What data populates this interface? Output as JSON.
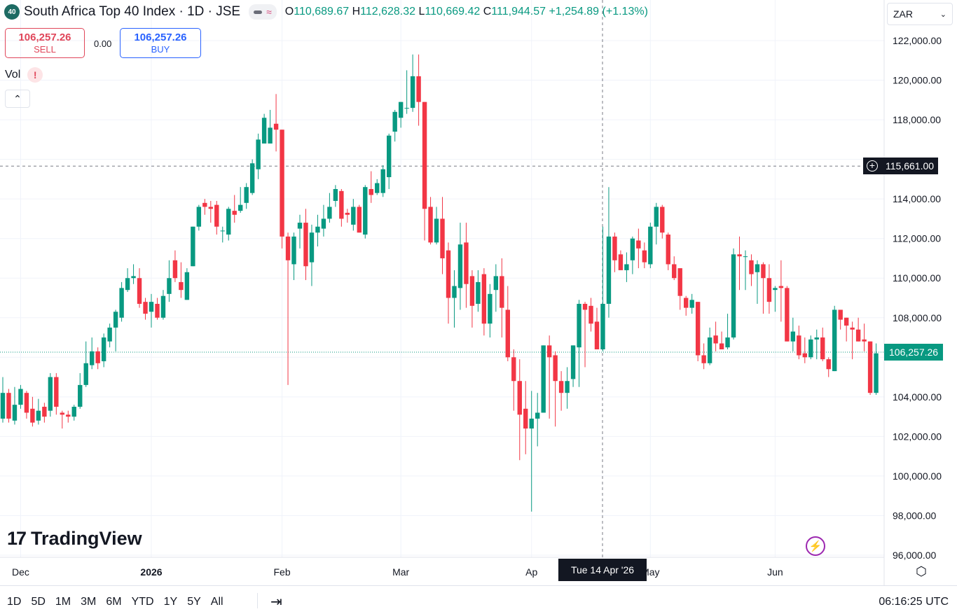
{
  "header": {
    "symbol_badge": "40",
    "title": "South Africa Top 40 Index · 1D · JSE",
    "ohlc": {
      "o_label": "O",
      "o": "110,689.67",
      "h_label": "H",
      "h": "112,628.32",
      "l_label": "L",
      "l": "110,669.42",
      "c_label": "C",
      "c": "111,944.57",
      "change": "+1,254.89 (+1.13%)"
    }
  },
  "trade": {
    "sell_price": "106,257.26",
    "sell_label": "SELL",
    "spread": "0.00",
    "buy_price": "106,257.26",
    "buy_label": "BUY"
  },
  "vol_label": "Vol",
  "vol_warning": "!",
  "currency": "ZAR",
  "crosshair": {
    "price_label": "115,661.00",
    "date_label": "Tue 14 Apr '26",
    "price": 115661
  },
  "last_price_label": "106,257.26",
  "logo_text": "TradingView",
  "bottom": {
    "ranges": [
      "1D",
      "5D",
      "1M",
      "3M",
      "6M",
      "YTD",
      "1Y",
      "5Y",
      "All"
    ],
    "clock": "06:16:25 UTC"
  },
  "colors": {
    "up": "#089981",
    "down": "#f23645",
    "grid": "#f0f3fa"
  },
  "icons": [
    "collapse-chevron-icon",
    "currency-chevron-icon",
    "crosshair-plus-icon",
    "lightning-icon",
    "settings-icon",
    "goto-date-icon"
  ],
  "chart_data": {
    "type": "candlestick",
    "ylim": [
      96000,
      122500
    ],
    "y_ticks": [
      96000,
      98000,
      100000,
      102000,
      104000,
      106000,
      108000,
      110000,
      112000,
      114000,
      116000,
      118000,
      120000,
      122000
    ],
    "y_tick_labels": [
      "96,000.00",
      "98,000.00",
      "100,000.00",
      "102,000.00",
      "104,000.00",
      "",
      "108,000.00",
      "110,000.00",
      "112,000.00",
      "114,000.00",
      "",
      "118,000.00",
      "120,000.00",
      "122,000.00"
    ],
    "x_labels": [
      {
        "label": "Dec",
        "index": 3
      },
      {
        "label": "2026",
        "index": 25
      },
      {
        "label": "Feb",
        "index": 47
      },
      {
        "label": "Mar",
        "index": 67
      },
      {
        "label": "Ap",
        "index": 89
      },
      {
        "label": "May",
        "index": 109
      },
      {
        "label": "Jun",
        "index": 130
      }
    ],
    "last_price": 106257.26,
    "candles": [
      [
        102900,
        104200,
        105000,
        102700
      ],
      [
        104200,
        102900,
        104400,
        102700
      ],
      [
        102800,
        103600,
        104500,
        102600
      ],
      [
        103600,
        104400,
        104600,
        103400
      ],
      [
        104200,
        103200,
        104300,
        102900
      ],
      [
        103400,
        102700,
        104000,
        102500
      ],
      [
        102800,
        103300,
        103900,
        102600
      ],
      [
        103500,
        103000,
        103700,
        102700
      ],
      [
        103300,
        105000,
        105200,
        103000
      ],
      [
        105000,
        103500,
        105200,
        103100
      ],
      [
        103200,
        103100,
        103300,
        102400
      ],
      [
        103100,
        103000,
        103300,
        102700
      ],
      [
        103000,
        103500,
        103600,
        102800
      ],
      [
        103500,
        104600,
        105200,
        103400
      ],
      [
        104600,
        105700,
        106800,
        104500
      ],
      [
        105600,
        106300,
        107000,
        105400
      ],
      [
        106300,
        105700,
        106500,
        105400
      ],
      [
        105800,
        107000,
        107200,
        105500
      ],
      [
        106800,
        107500,
        107700,
        106500
      ],
      [
        107500,
        108300,
        108400,
        106300
      ],
      [
        108000,
        109500,
        109800,
        107800
      ],
      [
        109400,
        110000,
        110500,
        109300
      ],
      [
        110000,
        110100,
        110700,
        109700
      ],
      [
        110000,
        108700,
        110500,
        108500
      ],
      [
        108800,
        108200,
        109000,
        107900
      ],
      [
        108300,
        108800,
        109200,
        107500
      ],
      [
        108700,
        108000,
        109000,
        107900
      ],
      [
        108000,
        109100,
        109400,
        107900
      ],
      [
        109200,
        110000,
        110900,
        108800
      ],
      [
        110900,
        110000,
        111400,
        109800
      ],
      [
        109800,
        109400,
        110800,
        109000
      ],
      [
        108900,
        110300,
        110500,
        108900
      ],
      [
        110600,
        112600,
        112600,
        110600
      ],
      [
        112600,
        113600,
        113700,
        112400
      ],
      [
        113800,
        113600,
        114000,
        113200
      ],
      [
        113600,
        113500,
        113900,
        112800
      ],
      [
        113700,
        112600,
        113900,
        112200
      ],
      [
        112400,
        112400,
        112600,
        111800
      ],
      [
        112200,
        113500,
        113600,
        111900
      ],
      [
        113400,
        113200,
        114200,
        112800
      ],
      [
        113400,
        113700,
        114600,
        113300
      ],
      [
        113800,
        114600,
        114800,
        113500
      ],
      [
        114300,
        115800,
        116000,
        114200
      ],
      [
        115500,
        117000,
        117300,
        115000
      ],
      [
        116800,
        118100,
        118300,
        116800
      ],
      [
        116800,
        117600,
        118500,
        117400
      ],
      [
        117800,
        117500,
        119300,
        116400
      ],
      [
        117500,
        112100,
        117500,
        111500
      ],
      [
        112100,
        110900,
        112300,
        104600
      ],
      [
        110700,
        112100,
        112300,
        109900
      ],
      [
        112500,
        112800,
        113200,
        111500
      ],
      [
        112800,
        110600,
        113500,
        109900
      ],
      [
        110800,
        112300,
        112700,
        109600
      ],
      [
        112300,
        112600,
        113200,
        111600
      ],
      [
        112500,
        113000,
        113700,
        112100
      ],
      [
        113000,
        113600,
        114300,
        112800
      ],
      [
        113900,
        114500,
        114700,
        113600
      ],
      [
        114400,
        113000,
        114500,
        112600
      ],
      [
        113300,
        113200,
        113500,
        112800
      ],
      [
        112700,
        113600,
        114000,
        112400
      ],
      [
        113600,
        112300,
        113700,
        112300
      ],
      [
        112200,
        114600,
        114700,
        112000
      ],
      [
        114500,
        114200,
        115400,
        113800
      ],
      [
        114300,
        114800,
        115000,
        114200
      ],
      [
        114300,
        115500,
        115700,
        114100
      ],
      [
        115100,
        117200,
        117300,
        114500
      ],
      [
        117400,
        118400,
        118500,
        116900
      ],
      [
        118100,
        118900,
        118900,
        117600
      ],
      [
        118600,
        118600,
        120500,
        118300
      ],
      [
        118600,
        120200,
        121300,
        118400
      ],
      [
        120200,
        118900,
        121300,
        117700
      ],
      [
        118900,
        113500,
        118900,
        111900
      ],
      [
        113600,
        111800,
        114100,
        111700
      ],
      [
        111800,
        113000,
        113600,
        111700
      ],
      [
        113000,
        111000,
        114100,
        110200
      ],
      [
        111400,
        109000,
        111800,
        107700
      ],
      [
        109000,
        109600,
        110400,
        107500
      ],
      [
        109500,
        111700,
        112800,
        108400
      ],
      [
        111800,
        109700,
        112800,
        108500
      ],
      [
        110100,
        108600,
        110400,
        107500
      ],
      [
        108700,
        109800,
        110400,
        108300
      ],
      [
        110200,
        107700,
        110500,
        107100
      ],
      [
        107700,
        109200,
        109700,
        107000
      ],
      [
        109400,
        110100,
        110700,
        108300
      ],
      [
        110100,
        108500,
        111000,
        107000
      ],
      [
        108400,
        106000,
        109600,
        105800
      ],
      [
        106000,
        104800,
        106400,
        103300
      ],
      [
        104800,
        103100,
        105900,
        100800
      ],
      [
        103400,
        102400,
        104800,
        101100
      ],
      [
        102400,
        102900,
        104300,
        98200
      ],
      [
        102900,
        103200,
        104200,
        101500
      ],
      [
        103200,
        106600,
        106600,
        103200
      ],
      [
        106600,
        106000,
        107100,
        102900
      ],
      [
        106100,
        104800,
        106300,
        102500
      ],
      [
        104800,
        104200,
        105300,
        103300
      ],
      [
        104200,
        104800,
        105500,
        103400
      ],
      [
        104900,
        106600,
        106600,
        104500
      ],
      [
        106500,
        108700,
        108900,
        104500
      ],
      [
        108700,
        108400,
        108800,
        105500
      ],
      [
        108600,
        107700,
        109000,
        107300
      ],
      [
        107800,
        106400,
        108500,
        106400
      ],
      [
        106400,
        108700,
        112600,
        106300
      ],
      [
        108700,
        112100,
        114600,
        108000
      ],
      [
        112100,
        110900,
        112300,
        110300
      ],
      [
        111200,
        110400,
        111400,
        110500
      ],
      [
        110400,
        110700,
        111300,
        109800
      ],
      [
        110900,
        112000,
        112100,
        110200
      ],
      [
        111900,
        111500,
        112500,
        110500
      ],
      [
        111400,
        110800,
        111800,
        110500
      ],
      [
        110700,
        112600,
        112800,
        110500
      ],
      [
        112600,
        113600,
        113800,
        111700
      ],
      [
        113600,
        112300,
        113700,
        112000
      ],
      [
        112200,
        110700,
        112300,
        110400
      ],
      [
        110700,
        110000,
        111100,
        109900
      ],
      [
        110500,
        109100,
        110500,
        108400
      ],
      [
        109000,
        108500,
        109100,
        108100
      ],
      [
        108500,
        108900,
        109200,
        108200
      ],
      [
        108800,
        106100,
        108800,
        105800
      ],
      [
        106100,
        105700,
        106700,
        105400
      ],
      [
        105700,
        107000,
        107500,
        105600
      ],
      [
        107100,
        106700,
        107800,
        106300
      ],
      [
        106700,
        106400,
        107300,
        106500
      ],
      [
        106500,
        107000,
        108200,
        106400
      ],
      [
        107000,
        111200,
        111500,
        106900
      ],
      [
        111200,
        111100,
        112100,
        109400
      ],
      [
        111100,
        111100,
        111400,
        109400
      ],
      [
        110900,
        110200,
        111200,
        109600
      ],
      [
        110300,
        110700,
        110900,
        108700
      ],
      [
        110700,
        110000,
        110800,
        108200
      ],
      [
        110000,
        108800,
        110700,
        108200
      ],
      [
        109400,
        109500,
        109600,
        108300
      ],
      [
        109600,
        109500,
        110900,
        107800
      ],
      [
        109500,
        106800,
        109600,
        106800
      ],
      [
        106800,
        107300,
        108000,
        106300
      ],
      [
        107100,
        106100,
        107600,
        105900
      ],
      [
        106200,
        106000,
        107000,
        105700
      ],
      [
        106000,
        106900,
        107100,
        105900
      ],
      [
        106900,
        107000,
        107400,
        105900
      ],
      [
        107000,
        105900,
        107500,
        105800
      ],
      [
        105900,
        105400,
        106000,
        105000
      ],
      [
        105300,
        108400,
        108600,
        105300
      ],
      [
        108400,
        107900,
        108300,
        107400
      ],
      [
        108000,
        107600,
        108000,
        106800
      ],
      [
        107500,
        107400,
        107800,
        105900
      ],
      [
        107400,
        106800,
        108000,
        106800
      ],
      [
        106900,
        106800,
        107700,
        106300
      ],
      [
        106800,
        104200,
        106800,
        104100
      ],
      [
        104200,
        106200,
        106700,
        104100
      ]
    ]
  }
}
